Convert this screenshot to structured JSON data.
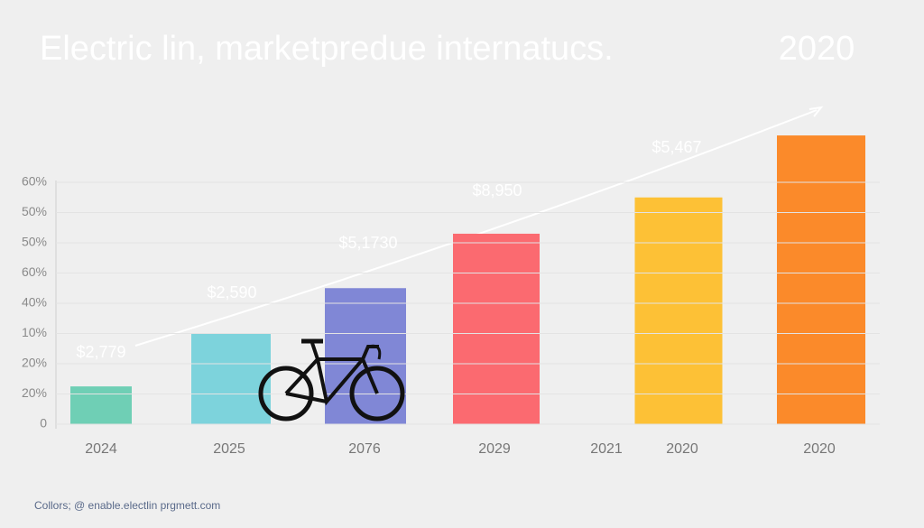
{
  "chart_data": {
    "type": "bar",
    "title": "Electric lin, marketpredue internatucs.",
    "subtitle": "2020",
    "categories": [
      "2024",
      "2025",
      "2076",
      "2029",
      "2021",
      "2020",
      "2020"
    ],
    "values": [
      1.25,
      3,
      4.5,
      6.3,
      null,
      7.5,
      9.55
    ],
    "colors": [
      "#6fcfb5",
      "#7dd3dc",
      "#8087d6",
      "#fb6a70",
      "#cccccc",
      "#fdc136",
      "#fb8a2a"
    ],
    "ylim": [
      0,
      10
    ],
    "yticks": [
      {
        "value": 0,
        "label": "0"
      },
      {
        "value": 1,
        "label": "20%"
      },
      {
        "value": 2,
        "label": "20%"
      },
      {
        "value": 3,
        "label": "10%"
      },
      {
        "value": 4,
        "label": "40%"
      },
      {
        "value": 5,
        "label": "60%"
      },
      {
        "value": 6,
        "label": "50%"
      },
      {
        "value": 7,
        "label": "50%"
      },
      {
        "value": 8,
        "label": "60%"
      }
    ],
    "grid": true,
    "annotations": [
      "$2,779",
      "$2,590",
      "$5,1730",
      "$8,950",
      "$5,467"
    ],
    "footer": "Collors; @ enable.electlin prgmett.com"
  }
}
